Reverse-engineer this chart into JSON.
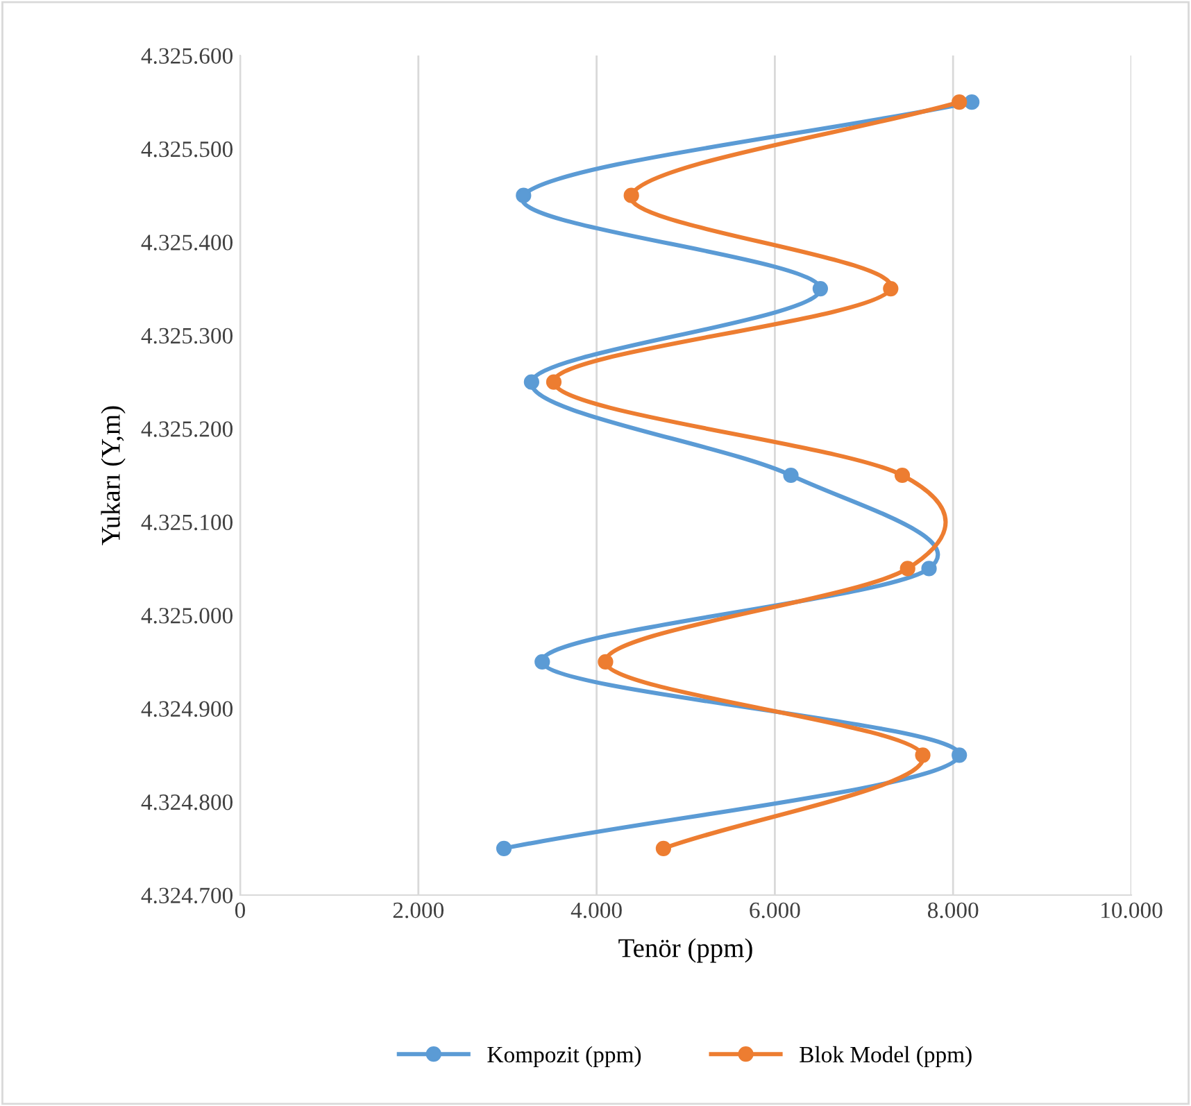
{
  "chart_data": {
    "type": "line",
    "xlabel": "Tenör (ppm)",
    "ylabel": "Yukarı (Y,m)",
    "series": [
      {
        "name": "Kompozit (ppm)",
        "color": "#5b9bd5",
        "x": [
          8210,
          3180,
          6510,
          3270,
          6180,
          7730,
          3390,
          8070,
          2960
        ],
        "values": [
          4325550,
          4325450,
          4325350,
          4325250,
          4325150,
          4325050,
          4324950,
          4324850,
          4324750
        ]
      },
      {
        "name": "Blok Model (ppm)",
        "color": "#ed7d31",
        "x": [
          8070,
          4390,
          7300,
          3520,
          7430,
          7490,
          4100,
          7660,
          4750
        ],
        "values": [
          4325550,
          4325450,
          4325350,
          4325250,
          4325150,
          4325050,
          4324950,
          4324850,
          4324750
        ]
      }
    ],
    "xlim": [
      0,
      10000
    ],
    "xticks": [
      {
        "value": 0,
        "label": "0"
      },
      {
        "value": 2000,
        "label": "2.000"
      },
      {
        "value": 4000,
        "label": "4.000"
      },
      {
        "value": 6000,
        "label": "6.000"
      },
      {
        "value": 8000,
        "label": "8.000"
      },
      {
        "value": 10000,
        "label": "10.000"
      }
    ],
    "ylim": [
      4324700,
      4325600
    ],
    "yticks": [
      {
        "value": 4324700,
        "label": "4.324.700"
      },
      {
        "value": 4324800,
        "label": "4.324.800"
      },
      {
        "value": 4324900,
        "label": "4.324.900"
      },
      {
        "value": 4325000,
        "label": "4.325.000"
      },
      {
        "value": 4325100,
        "label": "4.325.100"
      },
      {
        "value": 4325200,
        "label": "4.325.200"
      },
      {
        "value": 4325300,
        "label": "4.325.300"
      },
      {
        "value": 4325400,
        "label": "4.325.400"
      },
      {
        "value": 4325500,
        "label": "4.325.500"
      },
      {
        "value": 4325600,
        "label": "4.325.600"
      }
    ],
    "grid": "x",
    "legend": "bottom",
    "marker": "circle",
    "line_style": "solid"
  }
}
